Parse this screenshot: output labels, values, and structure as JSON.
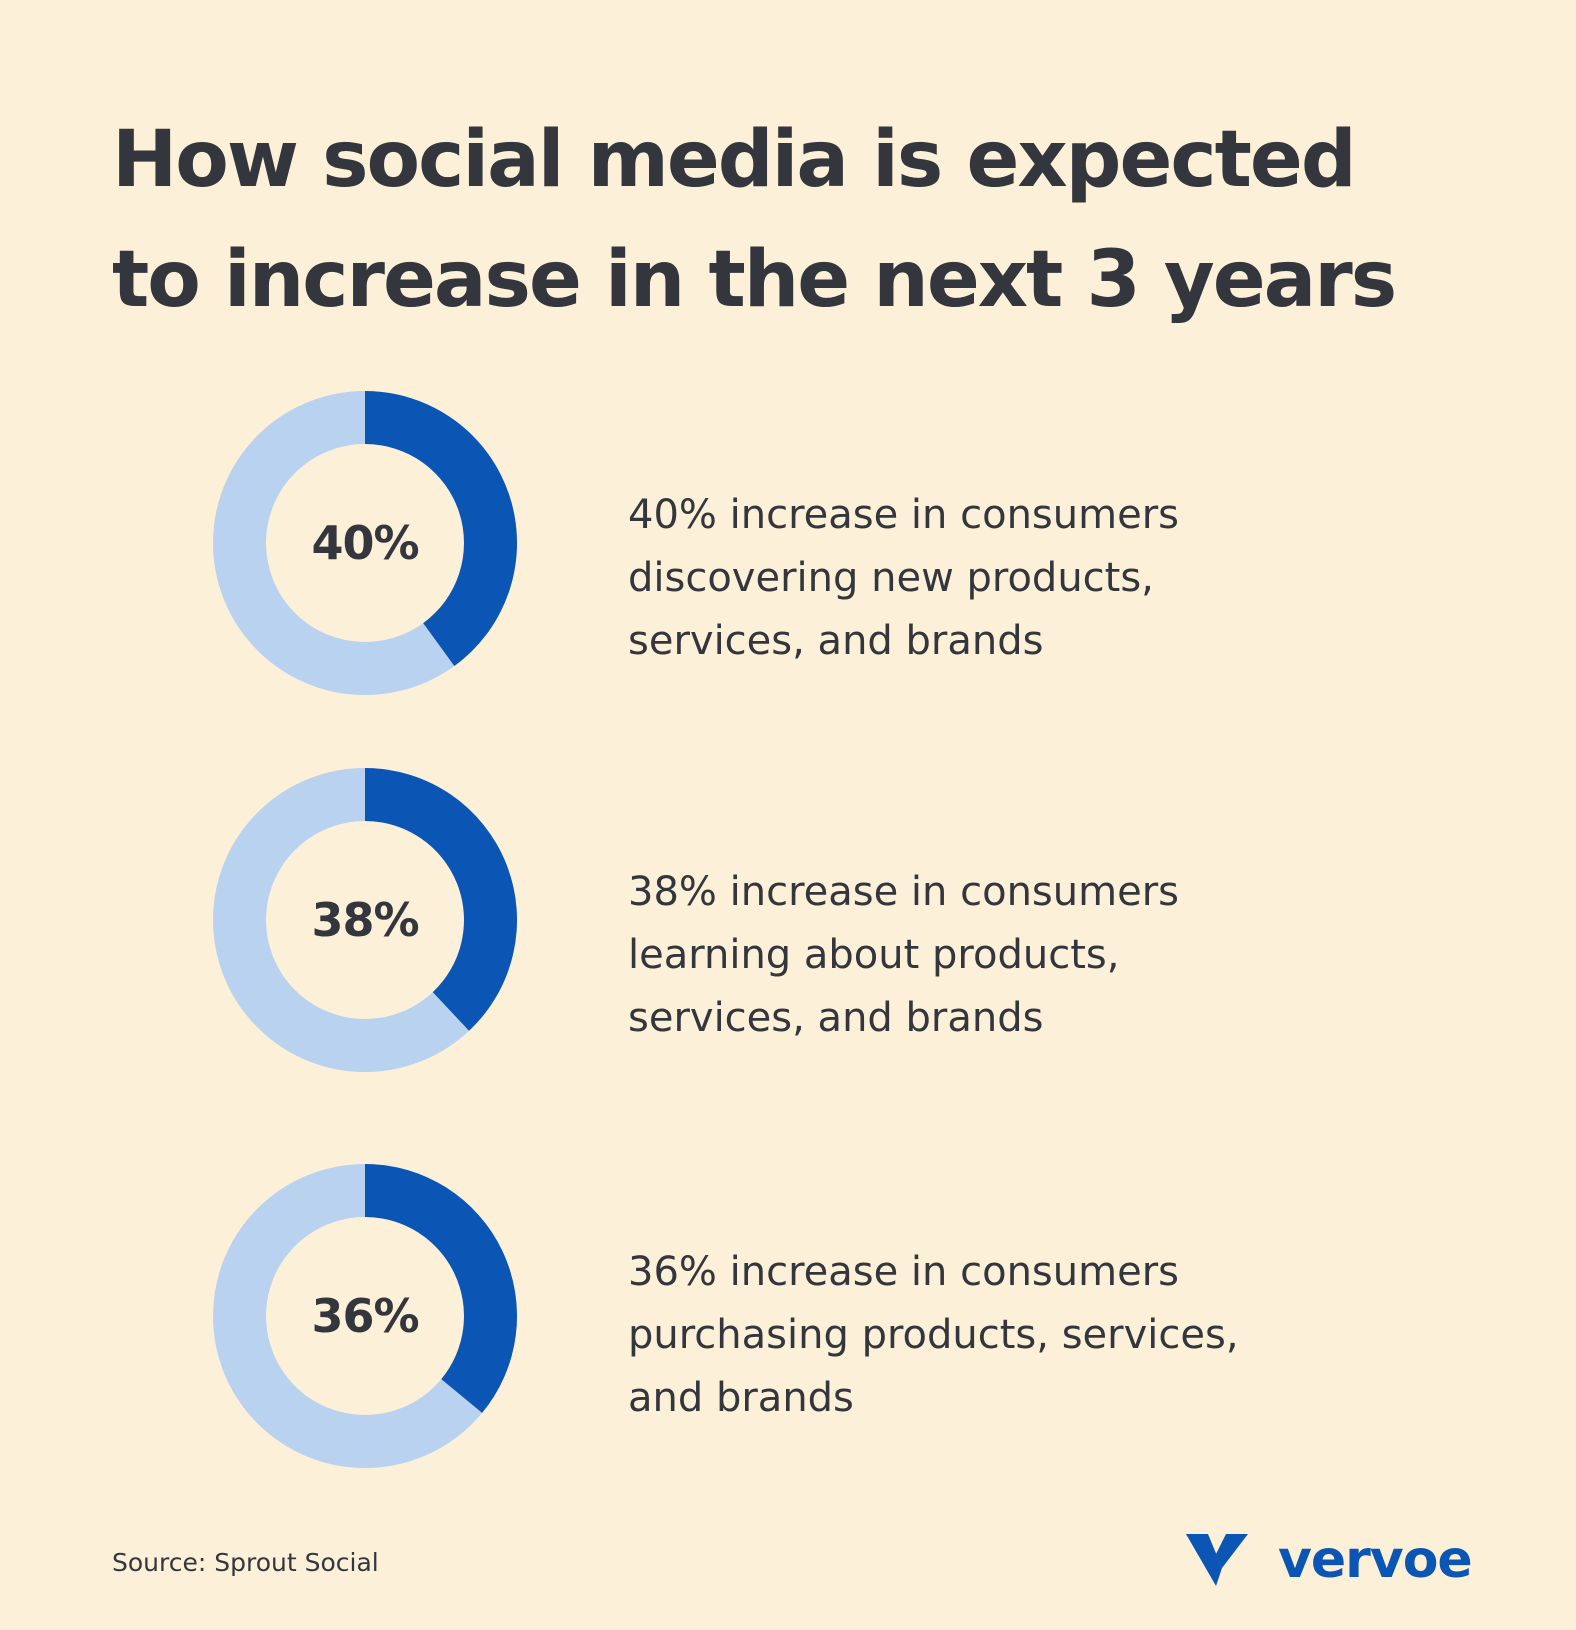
{
  "title_line1": "How social media is expected",
  "title_line2": "to increase in the next 3 years",
  "colors": {
    "background": "#fdf0d8",
    "filled": "#0b55b5",
    "track": "#b8d2f0",
    "text": "#33373d"
  },
  "chart_data": [
    {
      "type": "pie",
      "value": 40,
      "label": "40%",
      "description": [
        "40% increase in consumers",
        "discovering new products,",
        "services, and brands"
      ]
    },
    {
      "type": "pie",
      "value": 38,
      "label": "38%",
      "description": [
        "38% increase in consumers",
        "learning about products,",
        "services, and brands"
      ]
    },
    {
      "type": "pie",
      "value": 36,
      "label": "36%",
      "description": [
        "36% increase in consumers",
        "purchasing products, services,",
        "and brands"
      ]
    }
  ],
  "source": "Source: Sprout Social",
  "logo": {
    "text": "vervoe",
    "icon": "vervoe-v-logo-icon"
  }
}
